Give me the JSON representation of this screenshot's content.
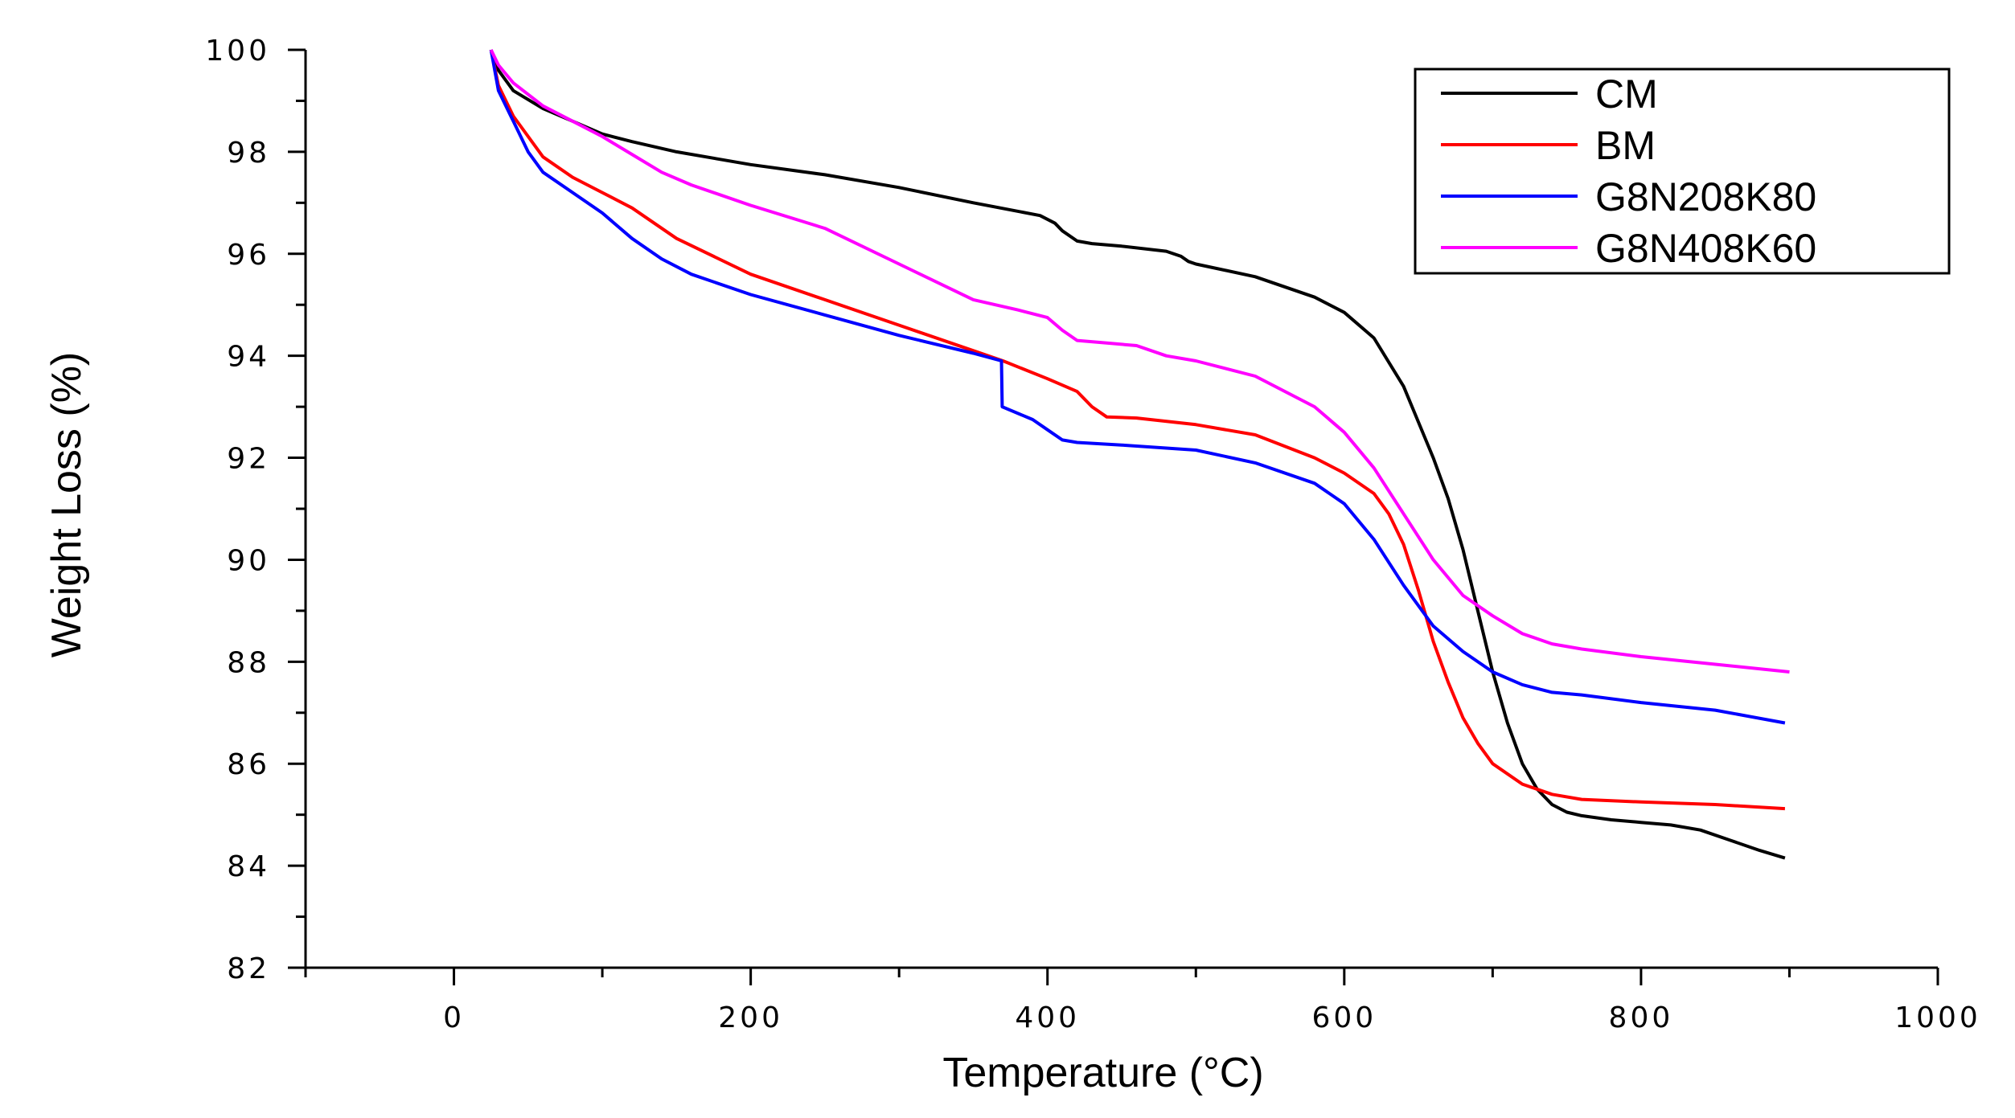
{
  "chart_data": {
    "type": "line",
    "title": "",
    "xlabel": "Temperature (°C)",
    "ylabel": "Weight Loss (%)",
    "xlim": [
      -100,
      1000
    ],
    "ylim": [
      82,
      100
    ],
    "x_ticks": [
      0,
      200,
      400,
      600,
      800,
      1000
    ],
    "y_ticks": [
      82,
      84,
      86,
      88,
      90,
      92,
      94,
      96,
      98,
      100
    ],
    "x_tick_labels": [
      "0",
      "200",
      "400",
      "600",
      "800",
      "1000"
    ],
    "y_tick_labels": [
      "82",
      "84",
      "86",
      "88",
      "90",
      "92",
      "94",
      "96",
      "98",
      "100"
    ],
    "legend_position": "top-right",
    "series": [
      {
        "name": "CM",
        "color": "#000000",
        "x": [
          25,
          30,
          40,
          60,
          80,
          100,
          120,
          150,
          200,
          250,
          300,
          350,
          395,
          405,
          410,
          420,
          430,
          450,
          480,
          490,
          495,
          500,
          540,
          580,
          600,
          620,
          640,
          660,
          670,
          680,
          690,
          700,
          710,
          720,
          730,
          740,
          750,
          760,
          780,
          800,
          820,
          840,
          860,
          880,
          897
        ],
        "values": [
          100,
          99.6,
          99.2,
          98.85,
          98.6,
          98.35,
          98.2,
          98.0,
          97.75,
          97.55,
          97.3,
          97.0,
          96.75,
          96.6,
          96.45,
          96.25,
          96.2,
          96.15,
          96.05,
          95.95,
          95.85,
          95.8,
          95.55,
          95.15,
          94.85,
          94.35,
          93.4,
          92.0,
          91.2,
          90.2,
          89.0,
          87.8,
          86.8,
          86.0,
          85.5,
          85.2,
          85.05,
          84.98,
          84.9,
          84.85,
          84.8,
          84.7,
          84.5,
          84.3,
          84.15
        ]
      },
      {
        "name": "BM",
        "color": "#ff0000",
        "x": [
          25,
          30,
          40,
          60,
          80,
          100,
          120,
          150,
          200,
          250,
          300,
          350,
          370,
          400,
          420,
          430,
          440,
          460,
          500,
          540,
          580,
          600,
          620,
          630,
          640,
          650,
          660,
          670,
          680,
          690,
          700,
          720,
          740,
          760,
          800,
          850,
          897
        ],
        "values": [
          100,
          99.3,
          98.7,
          97.9,
          97.5,
          97.2,
          96.9,
          96.3,
          95.6,
          95.1,
          94.6,
          94.1,
          93.9,
          93.55,
          93.3,
          93.0,
          92.8,
          92.78,
          92.65,
          92.45,
          92.0,
          91.7,
          91.3,
          90.9,
          90.3,
          89.4,
          88.4,
          87.6,
          86.9,
          86.4,
          86.0,
          85.6,
          85.4,
          85.3,
          85.25,
          85.2,
          85.12
        ]
      },
      {
        "name": "G8N208K80",
        "color": "#0000ff",
        "x": [
          25,
          30,
          40,
          50,
          60,
          80,
          100,
          120,
          140,
          160,
          200,
          250,
          300,
          350,
          369,
          369.5,
          390,
          400,
          410,
          420,
          450,
          500,
          540,
          580,
          600,
          620,
          640,
          660,
          680,
          700,
          720,
          740,
          760,
          800,
          850,
          897
        ],
        "values": [
          100,
          99.2,
          98.6,
          98.0,
          97.6,
          97.2,
          96.8,
          96.3,
          95.9,
          95.6,
          95.2,
          94.8,
          94.4,
          94.05,
          93.9,
          93.0,
          92.75,
          92.55,
          92.35,
          92.3,
          92.25,
          92.15,
          91.9,
          91.5,
          91.1,
          90.4,
          89.5,
          88.7,
          88.2,
          87.8,
          87.55,
          87.4,
          87.35,
          87.2,
          87.05,
          86.8
        ]
      },
      {
        "name": "G8N408K60",
        "color": "#ff00ff",
        "x": [
          25,
          30,
          40,
          60,
          80,
          100,
          120,
          140,
          160,
          200,
          250,
          300,
          350,
          380,
          400,
          410,
          420,
          440,
          460,
          480,
          500,
          540,
          580,
          600,
          620,
          640,
          660,
          680,
          700,
          720,
          740,
          760,
          800,
          850,
          900
        ],
        "values": [
          100,
          99.7,
          99.35,
          98.9,
          98.6,
          98.3,
          97.95,
          97.6,
          97.35,
          96.95,
          96.5,
          95.8,
          95.1,
          94.9,
          94.75,
          94.5,
          94.3,
          94.25,
          94.2,
          94.0,
          93.9,
          93.6,
          93.0,
          92.5,
          91.8,
          90.9,
          90.0,
          89.3,
          88.9,
          88.55,
          88.35,
          88.25,
          88.1,
          87.95,
          87.8
        ]
      }
    ]
  }
}
